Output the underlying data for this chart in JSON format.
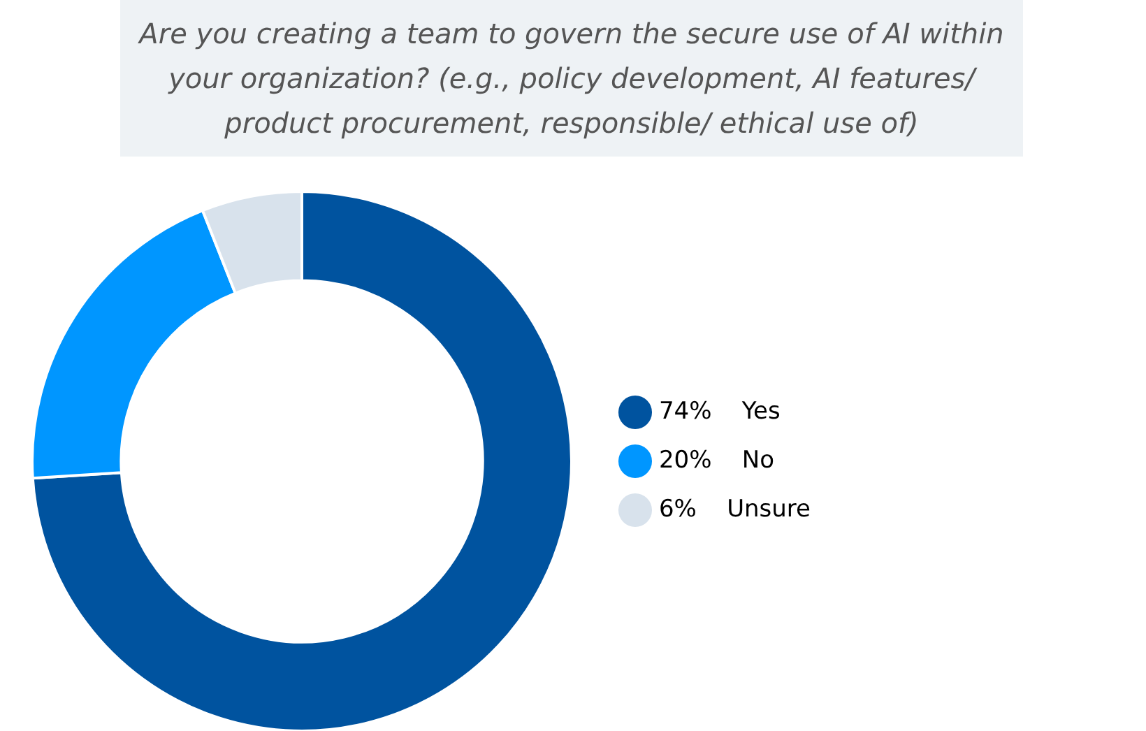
{
  "chart_data": {
    "type": "donut",
    "title": "Are you creating a team to govern the secure use of AI within your organization? (e.g., policy development, AI features/ product procurement, responsible/ ethical use of)",
    "categories": [
      "Yes",
      "No",
      "Unsure"
    ],
    "values": [
      74,
      20,
      6
    ],
    "value_labels": [
      "74%",
      "20%",
      "6%"
    ],
    "colors": [
      "#00539f",
      "#0096ff",
      "#d8e2ec"
    ],
    "legend": "right"
  }
}
